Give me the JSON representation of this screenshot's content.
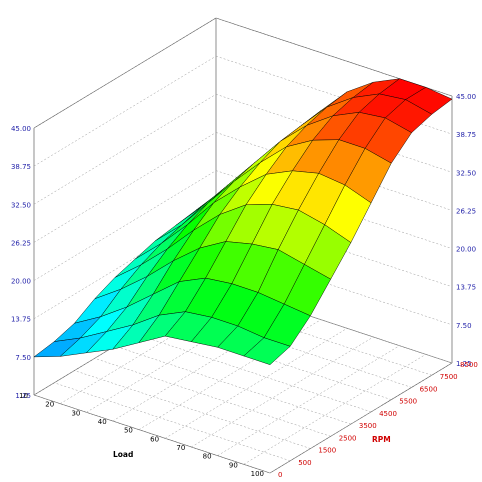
{
  "chart_data": {
    "type": "surface3d",
    "xlabel": "Load",
    "ylabel": "RPM",
    "x_ticks": [
      "10",
      "20",
      "30",
      "40",
      "50",
      "60",
      "70",
      "80",
      "90",
      "100"
    ],
    "y_ticks": [
      "0",
      "500",
      "1500",
      "2500",
      "3500",
      "4500",
      "5500",
      "6500",
      "7500",
      "8500"
    ],
    "z_ticks": [
      "1.25",
      "7.50",
      "13.75",
      "20.00",
      "26.25",
      "32.50",
      "38.75",
      "45.00"
    ],
    "zlim": [
      1.25,
      45.0
    ],
    "x": [
      10,
      20,
      30,
      40,
      50,
      60,
      70,
      80,
      90,
      100
    ],
    "y": [
      0,
      500,
      1500,
      2500,
      3500,
      4500,
      5500,
      6500,
      7500,
      8500
    ],
    "z": [
      [
        7.5,
        9.0,
        11.0,
        13.0,
        15.5,
        18.0,
        18.5,
        19.0,
        19.0,
        19.0
      ],
      [
        8.0,
        10.0,
        12.5,
        15.0,
        18.0,
        20.0,
        20.5,
        20.5,
        20.0,
        20.0
      ],
      [
        9.0,
        11.5,
        14.5,
        18.0,
        21.5,
        23.5,
        24.0,
        24.0,
        23.5,
        23.0
      ],
      [
        11.0,
        14.0,
        17.5,
        21.5,
        25.0,
        27.5,
        28.5,
        29.0,
        28.0,
        27.0
      ],
      [
        12.5,
        16.0,
        20.0,
        24.5,
        28.5,
        31.5,
        33.0,
        33.5,
        32.5,
        31.0
      ],
      [
        13.5,
        17.5,
        22.0,
        27.0,
        31.0,
        34.5,
        36.5,
        37.5,
        37.0,
        35.5
      ],
      [
        14.5,
        18.5,
        23.5,
        28.5,
        33.0,
        37.0,
        39.5,
        41.0,
        41.0,
        40.0
      ],
      [
        15.0,
        19.5,
        24.5,
        29.5,
        34.5,
        38.5,
        41.5,
        43.5,
        44.0,
        43.0
      ],
      [
        15.5,
        20.0,
        25.0,
        30.0,
        35.0,
        39.5,
        42.5,
        44.5,
        45.0,
        44.0
      ],
      [
        16.0,
        20.5,
        25.5,
        30.5,
        35.5,
        40.0,
        43.0,
        45.0,
        45.0,
        44.5
      ]
    ]
  }
}
